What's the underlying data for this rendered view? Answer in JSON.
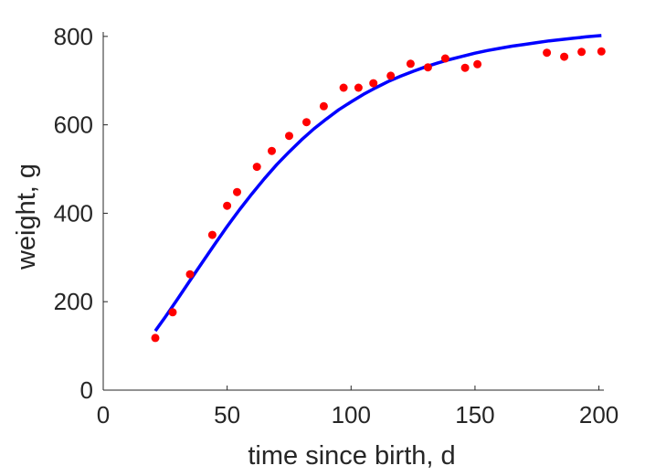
{
  "chart_data": {
    "type": "scatter",
    "title": "",
    "xlabel": "time since birth, d",
    "ylabel": "weight, g",
    "xlim": [
      0,
      202
    ],
    "ylim": [
      0,
      810
    ],
    "x_ticks": [
      0,
      50,
      100,
      150,
      200
    ],
    "y_ticks": [
      0,
      200,
      400,
      600,
      800
    ],
    "grid": false,
    "legend": "none",
    "series": [
      {
        "kind": "points",
        "color": "#ff0000",
        "x": [
          21,
          28,
          35,
          44,
          50,
          54,
          62,
          68,
          75,
          82,
          89,
          97,
          103,
          109,
          116,
          124,
          131,
          138,
          146,
          151,
          179,
          186,
          193,
          201
        ],
        "y": [
          118,
          176,
          262,
          351,
          417,
          448,
          505,
          541,
          575,
          606,
          642,
          684,
          684,
          694,
          711,
          738,
          730,
          750,
          729,
          737,
          763,
          754,
          765,
          766
        ]
      },
      {
        "kind": "line",
        "color": "#0000ff",
        "x": [
          21,
          25,
          30,
          35,
          40,
          45,
          50,
          55,
          60,
          65,
          70,
          75,
          80,
          85,
          90,
          95,
          100,
          105,
          110,
          115,
          120,
          125,
          130,
          135,
          140,
          145,
          150,
          155,
          160,
          165,
          170,
          175,
          180,
          185,
          190,
          195,
          201
        ],
        "y": [
          134,
          165,
          206,
          248,
          289,
          330,
          370,
          408,
          444,
          478,
          510,
          539,
          566,
          591,
          613,
          634,
          652,
          669,
          684,
          698,
          710,
          721,
          731,
          740,
          748,
          755,
          762,
          768,
          773,
          778,
          782,
          786,
          790,
          793,
          796,
          799,
          802
        ]
      }
    ]
  }
}
